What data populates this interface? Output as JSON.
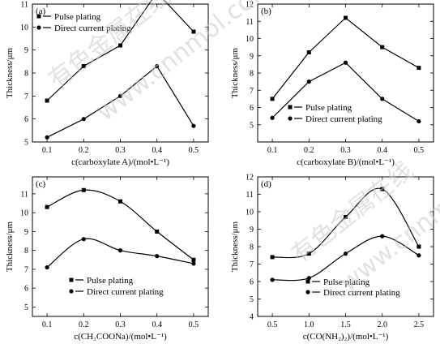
{
  "watermark": {
    "text": "有色金属在线",
    "site": "www.cnnmol.com"
  },
  "chart_data": [
    {
      "type": "line",
      "tag": "(a)",
      "xlabel": "c(carboxylate A)/(mol•L⁻¹)",
      "ylabel": "Thickness/μm",
      "x": [
        0.1,
        0.2,
        0.3,
        0.4,
        0.5
      ],
      "xlim": [
        0.06,
        0.54
      ],
      "ylim": [
        5,
        11
      ],
      "xticks": [
        0.1,
        0.2,
        0.3,
        0.4,
        0.5
      ],
      "yticks": [
        5,
        6,
        7,
        8,
        9,
        10,
        11
      ],
      "smooth": false,
      "legend_position": "top-left",
      "series": [
        {
          "name": "Pulse plating",
          "marker": "square",
          "values": [
            6.8,
            8.3,
            9.2,
            11.5,
            9.8
          ]
        },
        {
          "name": "Direct current plating",
          "marker": "circle",
          "values": [
            5.2,
            6.0,
            7.0,
            8.3,
            5.7
          ]
        }
      ]
    },
    {
      "type": "line",
      "tag": "(b)",
      "xlabel": "c(carboxylate B)/(mol•L⁻¹)",
      "ylabel": "Thickness/μm",
      "x": [
        0.1,
        0.2,
        0.3,
        0.4,
        0.5
      ],
      "xlim": [
        0.06,
        0.54
      ],
      "ylim": [
        4,
        12
      ],
      "xticks": [
        0.1,
        0.2,
        0.3,
        0.4,
        0.5
      ],
      "yticks": [
        5,
        6,
        7,
        8,
        9,
        10,
        11,
        12
      ],
      "smooth": false,
      "legend_position": "bottom-right",
      "series": [
        {
          "name": "Pulse plating",
          "marker": "square",
          "values": [
            6.5,
            9.2,
            11.2,
            9.5,
            8.3
          ]
        },
        {
          "name": "Direct current plating",
          "marker": "circle",
          "values": [
            5.4,
            7.5,
            8.6,
            6.5,
            5.2
          ]
        }
      ]
    },
    {
      "type": "line",
      "tag": "(c)",
      "xlabel": "c(CH₃COONa)/(mol•L⁻¹)",
      "ylabel": "Thickness/μm",
      "x": [
        0.1,
        0.2,
        0.3,
        0.4,
        0.5
      ],
      "xlim": [
        0.06,
        0.54
      ],
      "ylim": [
        4.5,
        11.9
      ],
      "xticks": [
        0.1,
        0.2,
        0.3,
        0.4,
        0.5
      ],
      "yticks": [
        5,
        6,
        7,
        8,
        9,
        10,
        11
      ],
      "smooth": true,
      "legend_position": "bottom-left",
      "series": [
        {
          "name": "Pulse plating",
          "marker": "square",
          "values": [
            10.3,
            11.2,
            10.6,
            9.0,
            7.5
          ]
        },
        {
          "name": "Direct current plating",
          "marker": "circle",
          "values": [
            7.1,
            8.6,
            8.0,
            7.7,
            7.3
          ]
        }
      ]
    },
    {
      "type": "line",
      "tag": "(d)",
      "xlabel": "c(CO(NH₂)₂)/(mol•L⁻¹)",
      "ylabel": "Thickness/μm",
      "x": [
        0.5,
        1.0,
        1.5,
        2.0,
        2.5
      ],
      "xlim": [
        0.3,
        2.7
      ],
      "ylim": [
        4,
        12
      ],
      "xticks": [
        0.5,
        1.0,
        1.5,
        2.0,
        2.5
      ],
      "yticks": [
        4,
        5,
        6,
        7,
        8,
        9,
        10,
        11,
        12
      ],
      "smooth": true,
      "legend_position": "bottom-right",
      "series": [
        {
          "name": "Pulse plating",
          "marker": "square",
          "values": [
            7.4,
            7.6,
            9.7,
            11.3,
            8.0
          ]
        },
        {
          "name": "Direct current plating",
          "marker": "circle",
          "values": [
            6.1,
            6.2,
            7.6,
            8.6,
            7.5
          ]
        }
      ]
    }
  ]
}
